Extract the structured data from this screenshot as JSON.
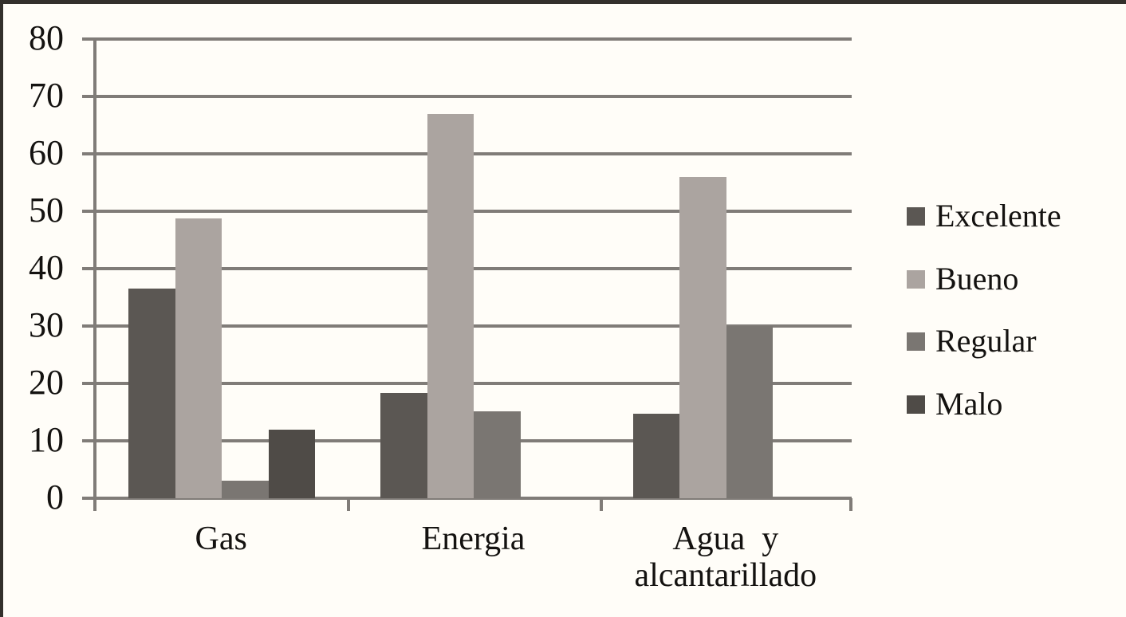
{
  "page": {
    "background_color": "#fffdf8",
    "frame_color": "#33302c",
    "grid_color": "#807c78",
    "text_color": "#141210"
  },
  "chart_data": {
    "type": "bar",
    "categories": [
      "Gas",
      "Energia",
      "Agua y alcantarillado"
    ],
    "category_label_lines": [
      [
        "Gas"
      ],
      [
        "Energia"
      ],
      [
        "Agua  y",
        "alcantarillado"
      ]
    ],
    "series": [
      {
        "name": "Excelente",
        "color": "#5b5753",
        "values": [
          36.5,
          18.3,
          14.7
        ]
      },
      {
        "name": "Bueno",
        "color": "#aba4a0",
        "values": [
          48.7,
          66.9,
          56.0
        ]
      },
      {
        "name": "Regular",
        "color": "#7a7672",
        "values": [
          3.0,
          15.2,
          30.0
        ]
      },
      {
        "name": "Malo",
        "color": "#4f4b47",
        "values": [
          12.0,
          0,
          0
        ]
      }
    ],
    "ylim": [
      0,
      80
    ],
    "yticks": [
      0,
      10,
      20,
      30,
      40,
      50,
      60,
      70,
      80
    ],
    "grid": true,
    "legend_position": "right",
    "title": "",
    "xlabel": "",
    "ylabel": ""
  }
}
